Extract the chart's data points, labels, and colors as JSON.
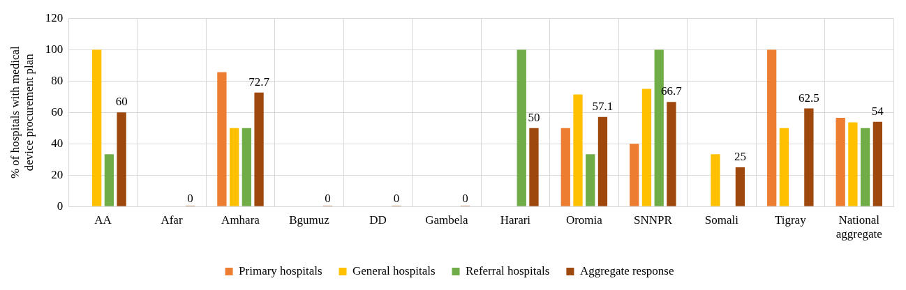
{
  "chart_data": {
    "type": "bar",
    "ylabel": "% of hospitals with medical device procurement plan",
    "categories": [
      "AA",
      "Afar",
      "Amhara",
      "Bgumuz",
      "DD",
      "Gambela",
      "Harari",
      "Oromia",
      "SNNPR",
      "Somali",
      "Tigray",
      "National aggregate"
    ],
    "series": [
      {
        "name": "Primary hospitals",
        "color": "#ed7d31",
        "values": [
          0,
          0,
          85.7,
          0,
          0,
          0,
          0,
          50,
          40,
          0,
          100,
          56.5
        ]
      },
      {
        "name": "General hospitals",
        "color": "#ffc000",
        "values": [
          100,
          0,
          50,
          0,
          0,
          0,
          0,
          71.4,
          75,
          33.3,
          50,
          53.7
        ]
      },
      {
        "name": "Referral hospitals",
        "color": "#70ad47",
        "values": [
          33.3,
          0,
          50,
          0,
          0,
          0,
          100,
          33.3,
          100,
          0,
          0,
          50
        ]
      },
      {
        "name": "Aggregate response",
        "color": "#9e480e",
        "values": [
          60,
          0,
          72.7,
          0,
          0,
          0,
          50,
          57.1,
          66.7,
          25,
          62.5,
          54
        ],
        "value_labels": [
          "60",
          "0",
          "72.7",
          "0",
          "0",
          "0",
          "50",
          "57.1",
          "66.7",
          "25",
          "62.5",
          "54"
        ]
      }
    ],
    "ylim": [
      0,
      120
    ],
    "yticks": [
      0,
      20,
      40,
      60,
      80,
      100,
      120
    ],
    "grid": true,
    "legend": "bottom"
  }
}
